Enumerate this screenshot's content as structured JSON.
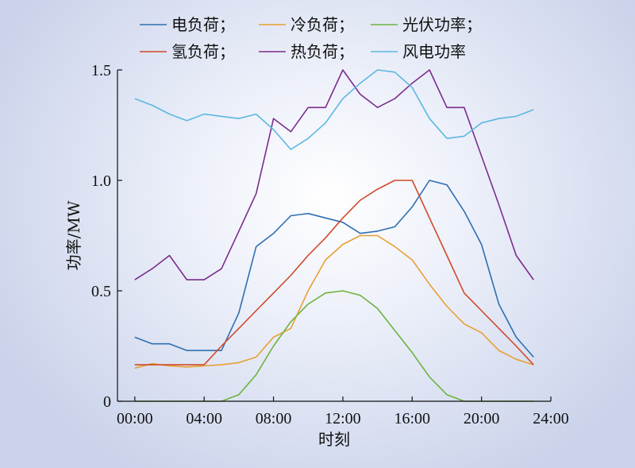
{
  "chart_data": {
    "type": "line",
    "xlabel": "时刻",
    "ylabel": "功率/MW",
    "ylim": [
      0,
      1.5
    ],
    "xlim": [
      -1,
      24
    ],
    "xticks": [
      0,
      4,
      8,
      12,
      16,
      20,
      24
    ],
    "xtick_labels": [
      "00:00",
      "04:00",
      "08:00",
      "12:00",
      "16:00",
      "20:00",
      "24:00"
    ],
    "yticks": [
      0,
      0.5,
      1.0,
      1.5
    ],
    "ytick_labels": [
      "0",
      "0.5",
      "1.0",
      "1.5"
    ],
    "x": [
      0,
      1,
      2,
      3,
      4,
      5,
      6,
      7,
      8,
      9,
      10,
      11,
      12,
      13,
      14,
      15,
      16,
      17,
      18,
      19,
      20,
      21,
      22,
      23
    ],
    "series": [
      {
        "name": "电负荷；",
        "color": "#2e6fb0",
        "values": [
          0.29,
          0.26,
          0.26,
          0.23,
          0.23,
          0.23,
          0.4,
          0.7,
          0.76,
          0.84,
          0.85,
          0.83,
          0.81,
          0.76,
          0.77,
          0.79,
          0.88,
          1.0,
          0.98,
          0.86,
          0.71,
          0.44,
          0.29,
          0.2
        ]
      },
      {
        "name": "冷负荷；",
        "color": "#e8a032",
        "values": [
          0.15,
          0.17,
          0.16,
          0.155,
          0.16,
          0.165,
          0.175,
          0.2,
          0.29,
          0.33,
          0.5,
          0.64,
          0.71,
          0.75,
          0.75,
          0.7,
          0.64,
          0.53,
          0.43,
          0.35,
          0.31,
          0.23,
          0.19,
          0.165
        ]
      },
      {
        "name": "光伏功率；",
        "color": "#6db33f",
        "values": [
          0,
          0,
          0,
          0,
          0,
          0,
          0.03,
          0.12,
          0.25,
          0.36,
          0.44,
          0.49,
          0.5,
          0.48,
          0.42,
          0.32,
          0.22,
          0.11,
          0.03,
          0,
          0,
          0,
          0,
          0
        ]
      },
      {
        "name": "氢负荷；",
        "color": "#d14a2a",
        "values": [
          0.165,
          0.165,
          0.165,
          0.165,
          0.165,
          0.25,
          0.33,
          0.41,
          0.49,
          0.57,
          0.66,
          0.74,
          0.83,
          0.91,
          0.96,
          1.0,
          1.0,
          0.83,
          0.66,
          0.49,
          0.41,
          0.33,
          0.25,
          0.165
        ]
      },
      {
        "name": "热负荷；",
        "color": "#7b2d8e",
        "values": [
          0.55,
          0.6,
          0.66,
          0.55,
          0.55,
          0.6,
          0.77,
          0.94,
          1.28,
          1.22,
          1.33,
          1.33,
          1.5,
          1.39,
          1.33,
          1.37,
          1.44,
          1.5,
          1.33,
          1.33,
          1.11,
          0.89,
          0.66,
          0.55
        ]
      },
      {
        "name": "风电功率",
        "color": "#5bb8e0",
        "values": [
          1.37,
          1.34,
          1.3,
          1.27,
          1.3,
          1.29,
          1.28,
          1.3,
          1.23,
          1.14,
          1.19,
          1.26,
          1.37,
          1.44,
          1.5,
          1.49,
          1.42,
          1.28,
          1.19,
          1.2,
          1.26,
          1.28,
          1.29,
          1.32
        ]
      }
    ]
  }
}
